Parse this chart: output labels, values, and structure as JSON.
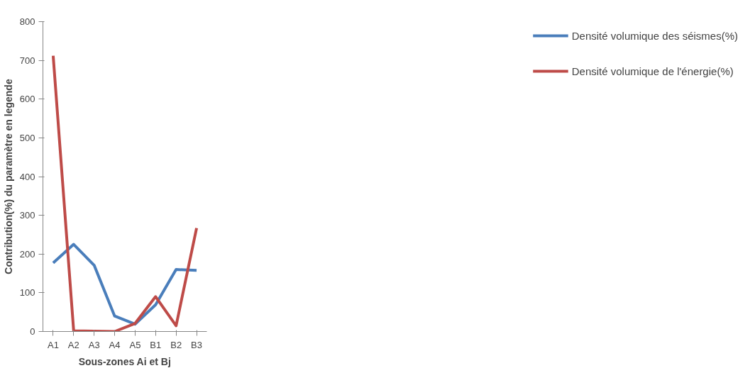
{
  "chart_data": {
    "type": "line",
    "xlabel": "Sous-zones Ai et Bj",
    "ylabel": "Contribution(%) du paramètre en legende",
    "categories": [
      "A1",
      "A2",
      "A3",
      "A4",
      "A5",
      "B1",
      "B2",
      "B3"
    ],
    "series": [
      {
        "name": "Densité volumique des séismes(%)",
        "color": "#4a7ebb",
        "values": [
          177,
          225,
          171,
          40,
          19,
          69,
          160,
          158
        ]
      },
      {
        "name": "Densité volumique de l'énergie(%)",
        "color": "#be4b48",
        "values": [
          712,
          2,
          1,
          0,
          21,
          90,
          15,
          267
        ]
      }
    ],
    "ylim": [
      0,
      800
    ],
    "yticks": [
      0,
      100,
      200,
      300,
      400,
      500,
      600,
      700,
      800
    ],
    "grid": false,
    "legend": "right",
    "marker": "none",
    "line_style": "solid"
  }
}
